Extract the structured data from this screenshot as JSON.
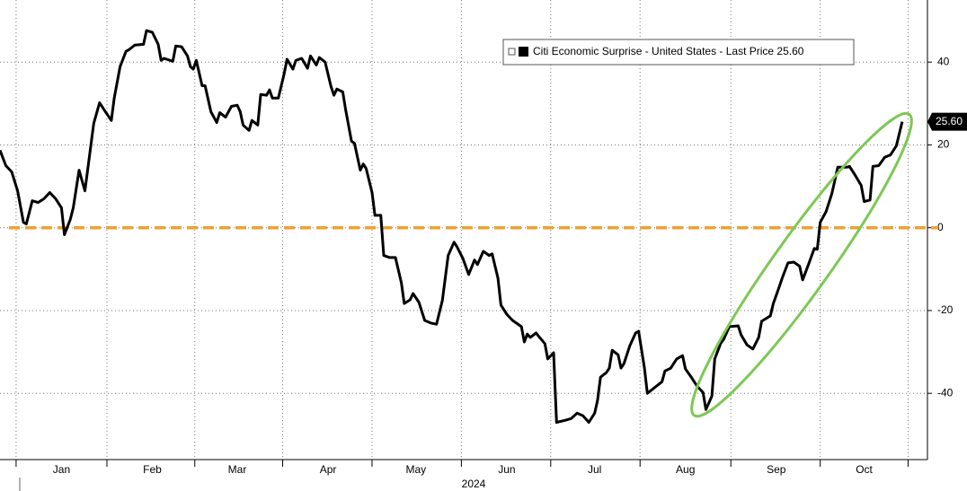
{
  "chart_data": {
    "type": "line",
    "xlabel": "2024",
    "xlim": [
      -7,
      309
    ],
    "xticks": [
      {
        "value": 14,
        "label": "Jan"
      },
      {
        "value": 45,
        "label": "Feb"
      },
      {
        "value": 74,
        "label": "Mar"
      },
      {
        "value": 105,
        "label": "Apr"
      },
      {
        "value": 135,
        "label": "May"
      },
      {
        "value": 166,
        "label": "Jun"
      },
      {
        "value": 196,
        "label": "Jul"
      },
      {
        "value": 227,
        "label": "Aug"
      },
      {
        "value": 258,
        "label": "Sep"
      },
      {
        "value": 288,
        "label": "Oct"
      }
    ],
    "ylim": [
      -56,
      55
    ],
    "yticks": [
      40,
      20,
      0,
      -20,
      -40
    ],
    "grid": true,
    "reference_line": {
      "y": 0,
      "color": "#f0a030"
    },
    "annotations": [
      {
        "text": "25.60",
        "y": 25.6
      }
    ],
    "x": [
      -7,
      -5,
      -3,
      -1,
      1,
      2,
      4,
      6,
      8,
      10,
      12,
      14,
      15,
      17,
      18,
      20,
      22,
      25,
      27,
      29,
      31,
      32,
      34,
      36,
      37,
      39,
      42,
      43,
      45,
      47,
      48,
      49,
      52,
      53,
      55,
      57,
      58,
      59,
      60,
      62,
      63,
      65,
      67,
      68,
      70,
      72,
      74,
      75,
      76,
      78,
      79,
      81,
      82,
      84,
      85,
      86,
      88,
      90,
      91,
      93,
      94,
      96,
      98,
      99,
      101,
      102,
      104,
      106,
      107,
      108,
      110,
      111,
      113,
      114,
      116,
      117,
      118,
      120,
      121,
      123,
      124,
      126,
      128,
      130,
      131,
      133,
      134,
      136,
      138,
      140,
      142,
      144,
      146,
      148,
      149,
      151,
      153,
      155,
      156,
      158,
      160,
      161,
      163,
      164,
      166,
      168,
      171,
      172,
      173,
      174,
      176,
      177,
      179,
      180,
      182,
      183,
      186,
      188,
      190,
      192,
      194,
      196,
      197,
      198,
      200,
      201,
      202,
      204,
      205,
      206,
      208,
      210,
      211,
      213,
      214,
      217,
      219,
      220,
      222,
      224,
      226,
      227,
      229,
      231,
      233,
      234,
      236,
      237,
      239,
      240,
      242,
      245,
      246,
      248,
      250,
      252,
      253,
      256,
      257,
      259,
      260,
      262,
      264,
      266,
      267,
      269,
      271,
      272,
      273,
      275,
      277,
      279,
      282,
      283,
      285,
      287,
      288,
      290,
      291,
      293,
      295,
      297,
      299,
      301
    ],
    "series": [
      {
        "name": "Citi Economic Surprise - United States - Last Price 25.60",
        "color": "#000000",
        "values": [
          18.7,
          15.0,
          13.5,
          8.9,
          1.3,
          0.9,
          6.5,
          6.1,
          7.0,
          8.5,
          7.0,
          4.8,
          -1.7,
          2.0,
          4.8,
          13.9,
          8.9,
          25.2,
          30.2,
          28.0,
          25.9,
          31.3,
          38.9,
          42.6,
          43.0,
          44.1,
          44.3,
          47.6,
          47.2,
          44.3,
          40.4,
          40.9,
          40.2,
          43.9,
          43.7,
          41.5,
          38.9,
          38.3,
          40.4,
          34.3,
          34.3,
          28.0,
          25.4,
          27.8,
          26.7,
          29.3,
          29.6,
          28.0,
          24.8,
          23.5,
          25.9,
          24.8,
          32.2,
          32.0,
          33.3,
          31.3,
          31.3,
          37.2,
          40.7,
          38.3,
          40.4,
          40.9,
          38.5,
          41.5,
          39.3,
          41.1,
          40.0,
          34.1,
          32.0,
          33.5,
          32.8,
          28.5,
          20.9,
          20.4,
          13.9,
          15.4,
          14.3,
          8.5,
          3.0,
          3.0,
          -6.7,
          -7.2,
          -7.2,
          -13.3,
          -18.3,
          -17.4,
          -15.9,
          -18.0,
          -22.4,
          -23.0,
          -23.3,
          -17.6,
          -6.7,
          -3.5,
          -4.6,
          -7.4,
          -11.3,
          -7.8,
          -8.9,
          -5.7,
          -6.7,
          -6.3,
          -12.2,
          -18.7,
          -20.9,
          -22.4,
          -23.9,
          -27.6,
          -25.7,
          -26.5,
          -25.4,
          -26.3,
          -28.0,
          -31.7,
          -30.2,
          -47.0,
          -46.5,
          -46.1,
          -44.8,
          -45.4,
          -47.0,
          -44.8,
          -41.7,
          -36.1,
          -35.0,
          -33.9,
          -29.6,
          -30.7,
          -33.9,
          -32.8,
          -28.5,
          -25.4,
          -25.0,
          -33.9,
          -40.0,
          -38.3,
          -37.2,
          -34.6,
          -33.9,
          -31.7,
          -30.9,
          -34.1,
          -36.1,
          -38.3,
          -39.8,
          -43.9,
          -40.7,
          -31.7,
          -28.0,
          -27.0,
          -23.9,
          -23.7,
          -25.9,
          -28.3,
          -29.3,
          -26.5,
          -22.6,
          -21.3,
          -18.3,
          -14.3,
          -12.2,
          -8.5,
          -8.3,
          -9.3,
          -12.6,
          -8.9,
          -5.0,
          -5.2,
          1.3,
          3.9,
          8.3,
          14.6,
          14.6,
          14.8,
          12.6,
          10.2,
          6.3,
          6.7,
          14.8,
          15.0,
          17.0,
          17.6,
          19.8,
          25.6
        ]
      }
    ]
  }
}
